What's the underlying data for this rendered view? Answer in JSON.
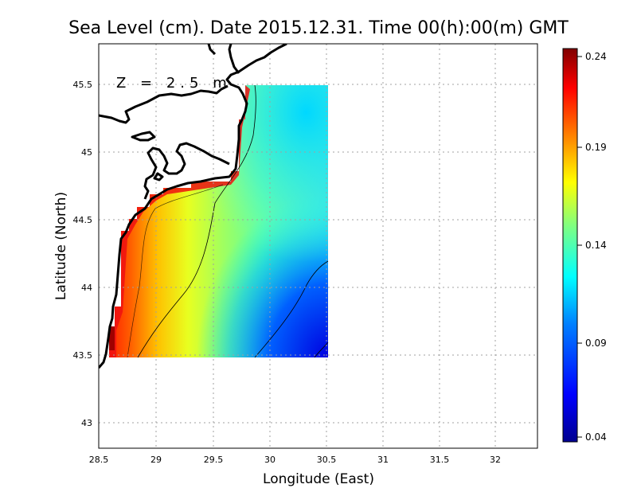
{
  "title": "Sea Level (cm). Date 2015.12.31. Time 00(h):00(m) GMT",
  "depth_label": "Z = 2.5 m",
  "x_axis": {
    "label": "Longitude (East)",
    "range": [
      28.5,
      32.4
    ],
    "ticks": [
      "28.5",
      "29",
      "29.5",
      "30",
      "30.5",
      "31",
      "31.5",
      "32"
    ]
  },
  "y_axis": {
    "label": "Latitude (North)",
    "range": [
      42.8,
      45.8
    ],
    "ticks": [
      "43",
      "43.5",
      "44",
      "44.5",
      "45",
      "45.5"
    ]
  },
  "colorbar": {
    "range": [
      0.04,
      0.24
    ],
    "ticks": [
      "0.04",
      "0.09",
      "0.14",
      "0.19",
      "0.24"
    ],
    "colormap": [
      "#00008f",
      "#0000ff",
      "#0080ff",
      "#00ffff",
      "#80ff80",
      "#ffff00",
      "#ff8000",
      "#ff0000",
      "#800000"
    ]
  },
  "data_domain": {
    "lon": [
      28.6,
      30.55
    ],
    "lat": [
      43.5,
      45.5
    ]
  },
  "grid": true,
  "colors": {
    "coast": "#000000",
    "grid": "#a0a0a0",
    "land": "#ffffff"
  }
}
